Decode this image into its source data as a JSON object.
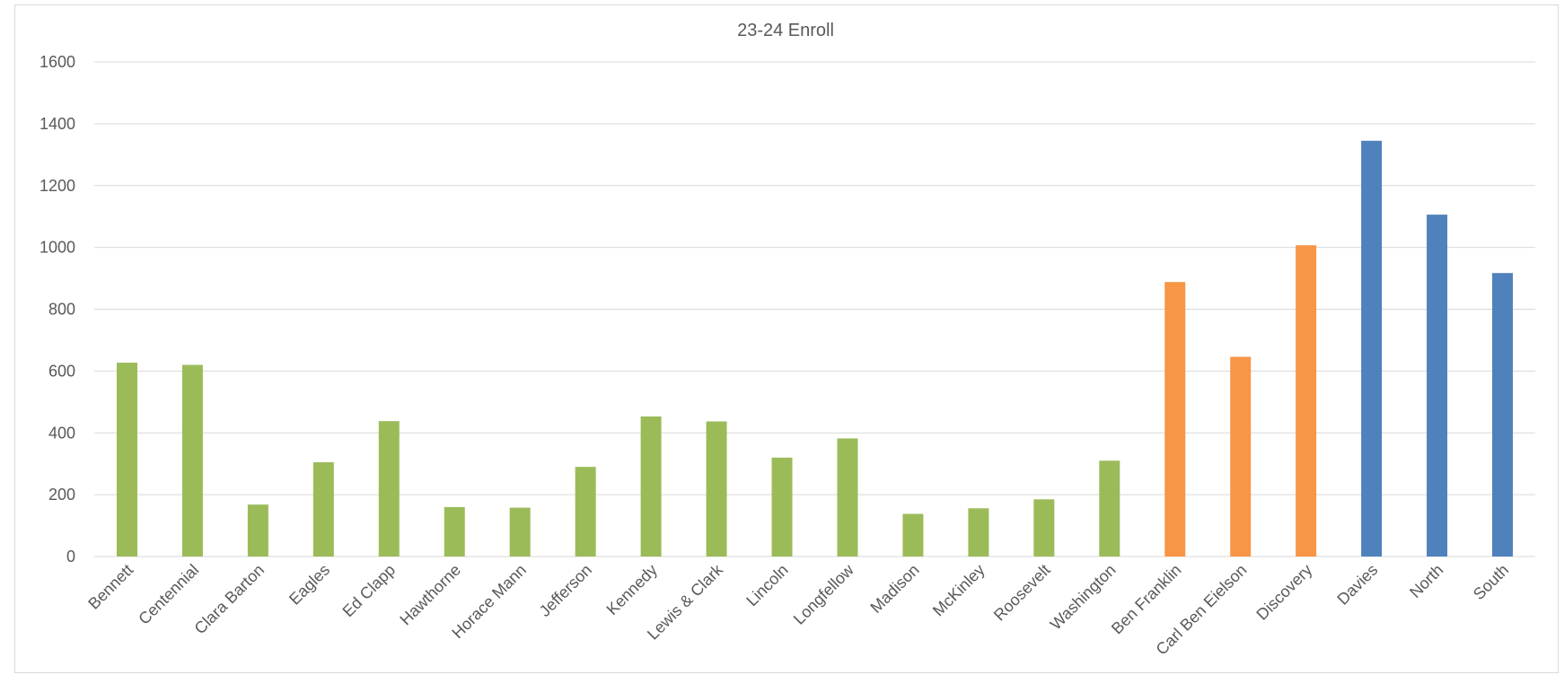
{
  "chart_data": {
    "type": "bar",
    "title": "23-24 Enroll",
    "xlabel": "",
    "ylabel": "",
    "ylim": [
      0,
      1600
    ],
    "yticks": [
      0,
      200,
      400,
      600,
      800,
      1000,
      1200,
      1400,
      1600
    ],
    "grid": true,
    "legend": "none",
    "categories": [
      "Bennett",
      "Centennial",
      "Clara Barton",
      "Eagles",
      "Ed Clapp",
      "Hawthorne",
      "Horace Mann",
      "Jefferson",
      "Kennedy",
      "Lewis & Clark",
      "Lincoln",
      "Longfellow",
      "Madison",
      "McKinley",
      "Roosevelt",
      "Washington",
      "Ben Franklin",
      "Carl Ben Eielson",
      "Discovery",
      "Davies",
      "North",
      "South"
    ],
    "values": [
      627,
      620,
      168,
      305,
      438,
      160,
      158,
      290,
      453,
      437,
      320,
      382,
      138,
      156,
      185,
      310,
      888,
      646,
      1007,
      1345,
      1106,
      917
    ],
    "bar_colors": [
      "#9bbb59",
      "#9bbb59",
      "#9bbb59",
      "#9bbb59",
      "#9bbb59",
      "#9bbb59",
      "#9bbb59",
      "#9bbb59",
      "#9bbb59",
      "#9bbb59",
      "#9bbb59",
      "#9bbb59",
      "#9bbb59",
      "#9bbb59",
      "#9bbb59",
      "#9bbb59",
      "#f79646",
      "#f79646",
      "#f79646",
      "#4f81bd",
      "#4f81bd",
      "#4f81bd"
    ],
    "gridline_color": "#d9d9d9",
    "text_color": "#595959"
  }
}
